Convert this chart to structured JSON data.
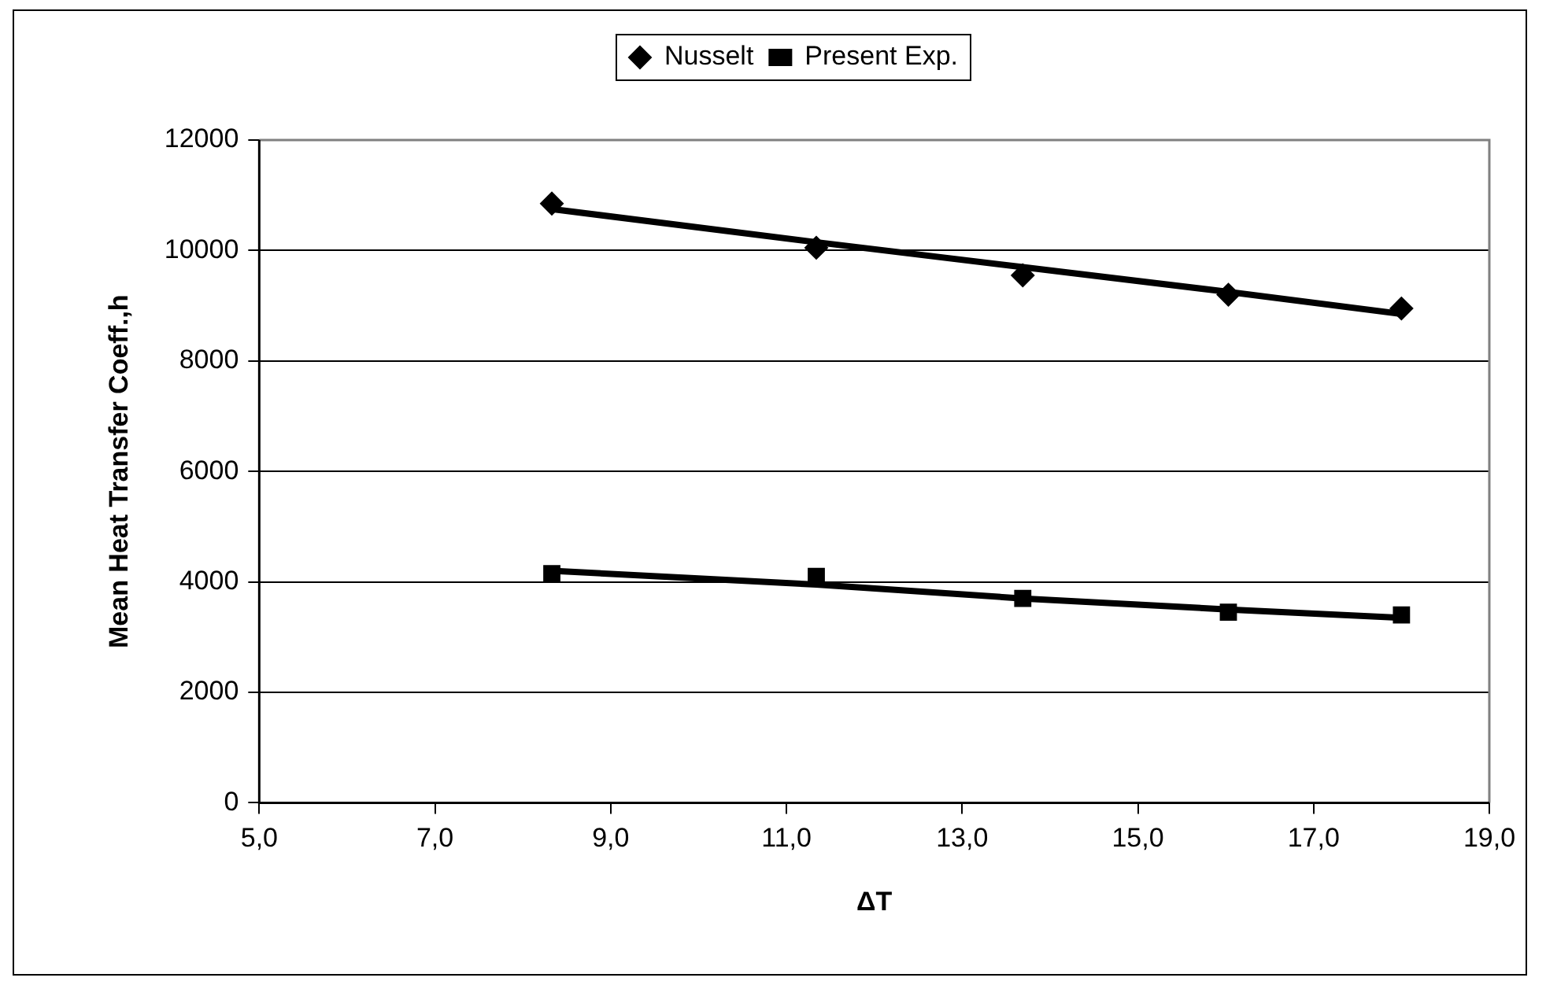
{
  "chart_data": {
    "type": "scatter",
    "xlabel": "ΔT",
    "ylabel": "Mean Heat Transfer Coeff.,h",
    "x": [
      8.33,
      11.34,
      13.69,
      16.03,
      18.0
    ],
    "series": [
      {
        "name": "Nusselt",
        "color": "#000000",
        "marker": "diamond",
        "values": [
          10850,
          10050,
          9550,
          9200,
          8950
        ]
      },
      {
        "name": "Present Exp.",
        "color": "#000000",
        "marker": "square",
        "values": [
          4150,
          4100,
          3700,
          3450,
          3400
        ]
      },
      {
        "type": "line",
        "color": "#000000",
        "values": [
          10750,
          10150,
          9700,
          9250,
          8850
        ],
        "marker": "none"
      },
      {
        "type": "line",
        "color": "#000000",
        "values": [
          4200,
          3950,
          3700,
          3500,
          3350
        ],
        "marker": "none"
      }
    ],
    "xlim": [
      5,
      19
    ],
    "xticks": [
      {
        "value": 5,
        "label": "5,0"
      },
      {
        "value": 7,
        "label": "7,0"
      },
      {
        "value": 9,
        "label": "9,0"
      },
      {
        "value": 11,
        "label": "11,0"
      },
      {
        "value": 13,
        "label": "13,0"
      },
      {
        "value": 15,
        "label": "15,0"
      },
      {
        "value": 17,
        "label": "17,0"
      },
      {
        "value": 19,
        "label": "19,0"
      }
    ],
    "ylim": [
      0,
      12000
    ],
    "yticks": [
      0,
      2000,
      4000,
      6000,
      8000,
      10000,
      12000
    ],
    "grid": "y",
    "legend": "top"
  }
}
